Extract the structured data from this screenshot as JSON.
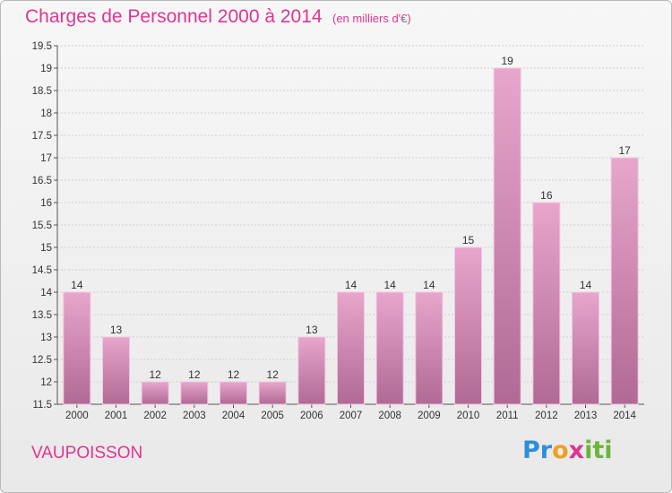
{
  "header": {
    "title": "Charges de Personnel 2000 à 2014",
    "subtitle": "(en milliers d'€)"
  },
  "footer": {
    "commune": "VAUPOISSON",
    "logo_parts": [
      "Pr",
      "o",
      "x",
      "iti"
    ]
  },
  "colors": {
    "accent": "#e0358f",
    "bar_top": "#e8a6cc",
    "bar_bottom": "#b06a95"
  },
  "chart_data": {
    "type": "bar",
    "title": "Charges de Personnel 2000 à 2014",
    "subtitle": "(en milliers d'€)",
    "categories": [
      "2000",
      "2001",
      "2002",
      "2003",
      "2004",
      "2005",
      "2006",
      "2007",
      "2008",
      "2009",
      "2010",
      "2011",
      "2012",
      "2013",
      "2014"
    ],
    "values": [
      14,
      13,
      12,
      12,
      12,
      12,
      13,
      14,
      14,
      14,
      15,
      19,
      16,
      14,
      17
    ],
    "value_labels": [
      "14",
      "13",
      "12",
      "12",
      "12",
      "12",
      "13",
      "14",
      "14",
      "14",
      "15",
      "19",
      "16",
      "14",
      "17"
    ],
    "ylim": [
      11.5,
      19.5
    ],
    "yticks": [
      11.5,
      12,
      12.5,
      13,
      13.5,
      14,
      14.5,
      15,
      15.5,
      16,
      16.5,
      17,
      17.5,
      18,
      18.5,
      19,
      19.5
    ],
    "ytick_labels": [
      "11.5",
      "12",
      "12.5",
      "13",
      "13.5",
      "14",
      "14.5",
      "15",
      "15.5",
      "16",
      "16.5",
      "17",
      "17.5",
      "18",
      "18.5",
      "19",
      "19.5"
    ],
    "grid": true,
    "legend": "none"
  }
}
